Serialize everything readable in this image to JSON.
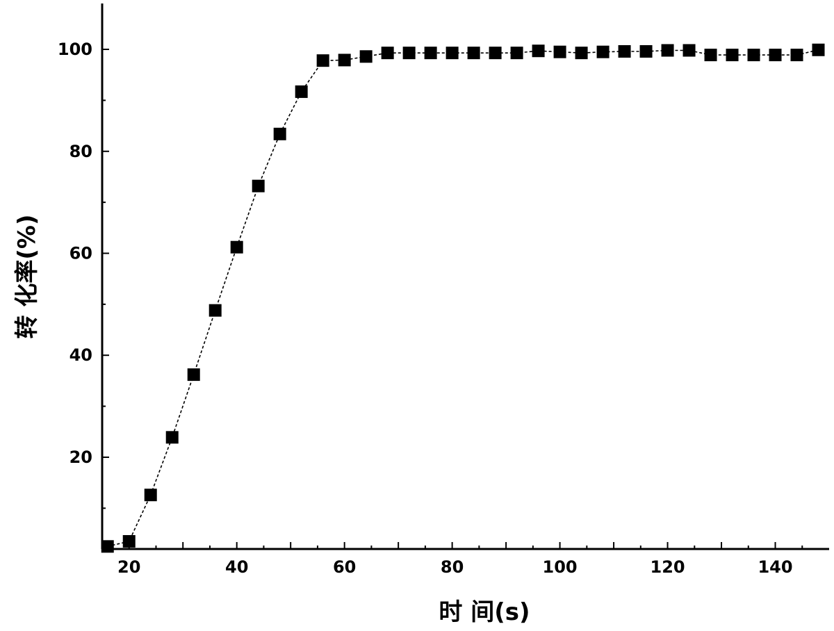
{
  "chart_data": {
    "type": "line",
    "title": "",
    "xlabel": "时 间(s)",
    "ylabel": "转 化率(%)",
    "xlim": [
      15,
      150
    ],
    "ylim": [
      2,
      109
    ],
    "x_ticks": [
      20,
      40,
      60,
      80,
      100,
      120,
      140
    ],
    "y_ticks": [
      20,
      40,
      60,
      80,
      100
    ],
    "grid": false,
    "legend": "none",
    "marker": "square",
    "line_style": "dotted",
    "color": "#000000",
    "series": [
      {
        "x": [
          16,
          20,
          24,
          28,
          32,
          36,
          40,
          44,
          48,
          52,
          56,
          60,
          64,
          68,
          72,
          76,
          80,
          84,
          88,
          92,
          96,
          100,
          104,
          108,
          112,
          116,
          120,
          124,
          128,
          132,
          136,
          140,
          144,
          148
        ],
        "y": [
          2.5,
          3.5,
          12.6,
          23.9,
          36.2,
          48.8,
          61.2,
          73.2,
          83.4,
          91.7,
          97.8,
          97.9,
          98.6,
          99.3,
          99.3,
          99.3,
          99.3,
          99.3,
          99.3,
          99.3,
          99.7,
          99.5,
          99.3,
          99.5,
          99.6,
          99.6,
          99.8,
          99.8,
          98.9,
          98.9,
          98.9,
          98.9,
          98.9,
          99.9
        ]
      }
    ]
  }
}
